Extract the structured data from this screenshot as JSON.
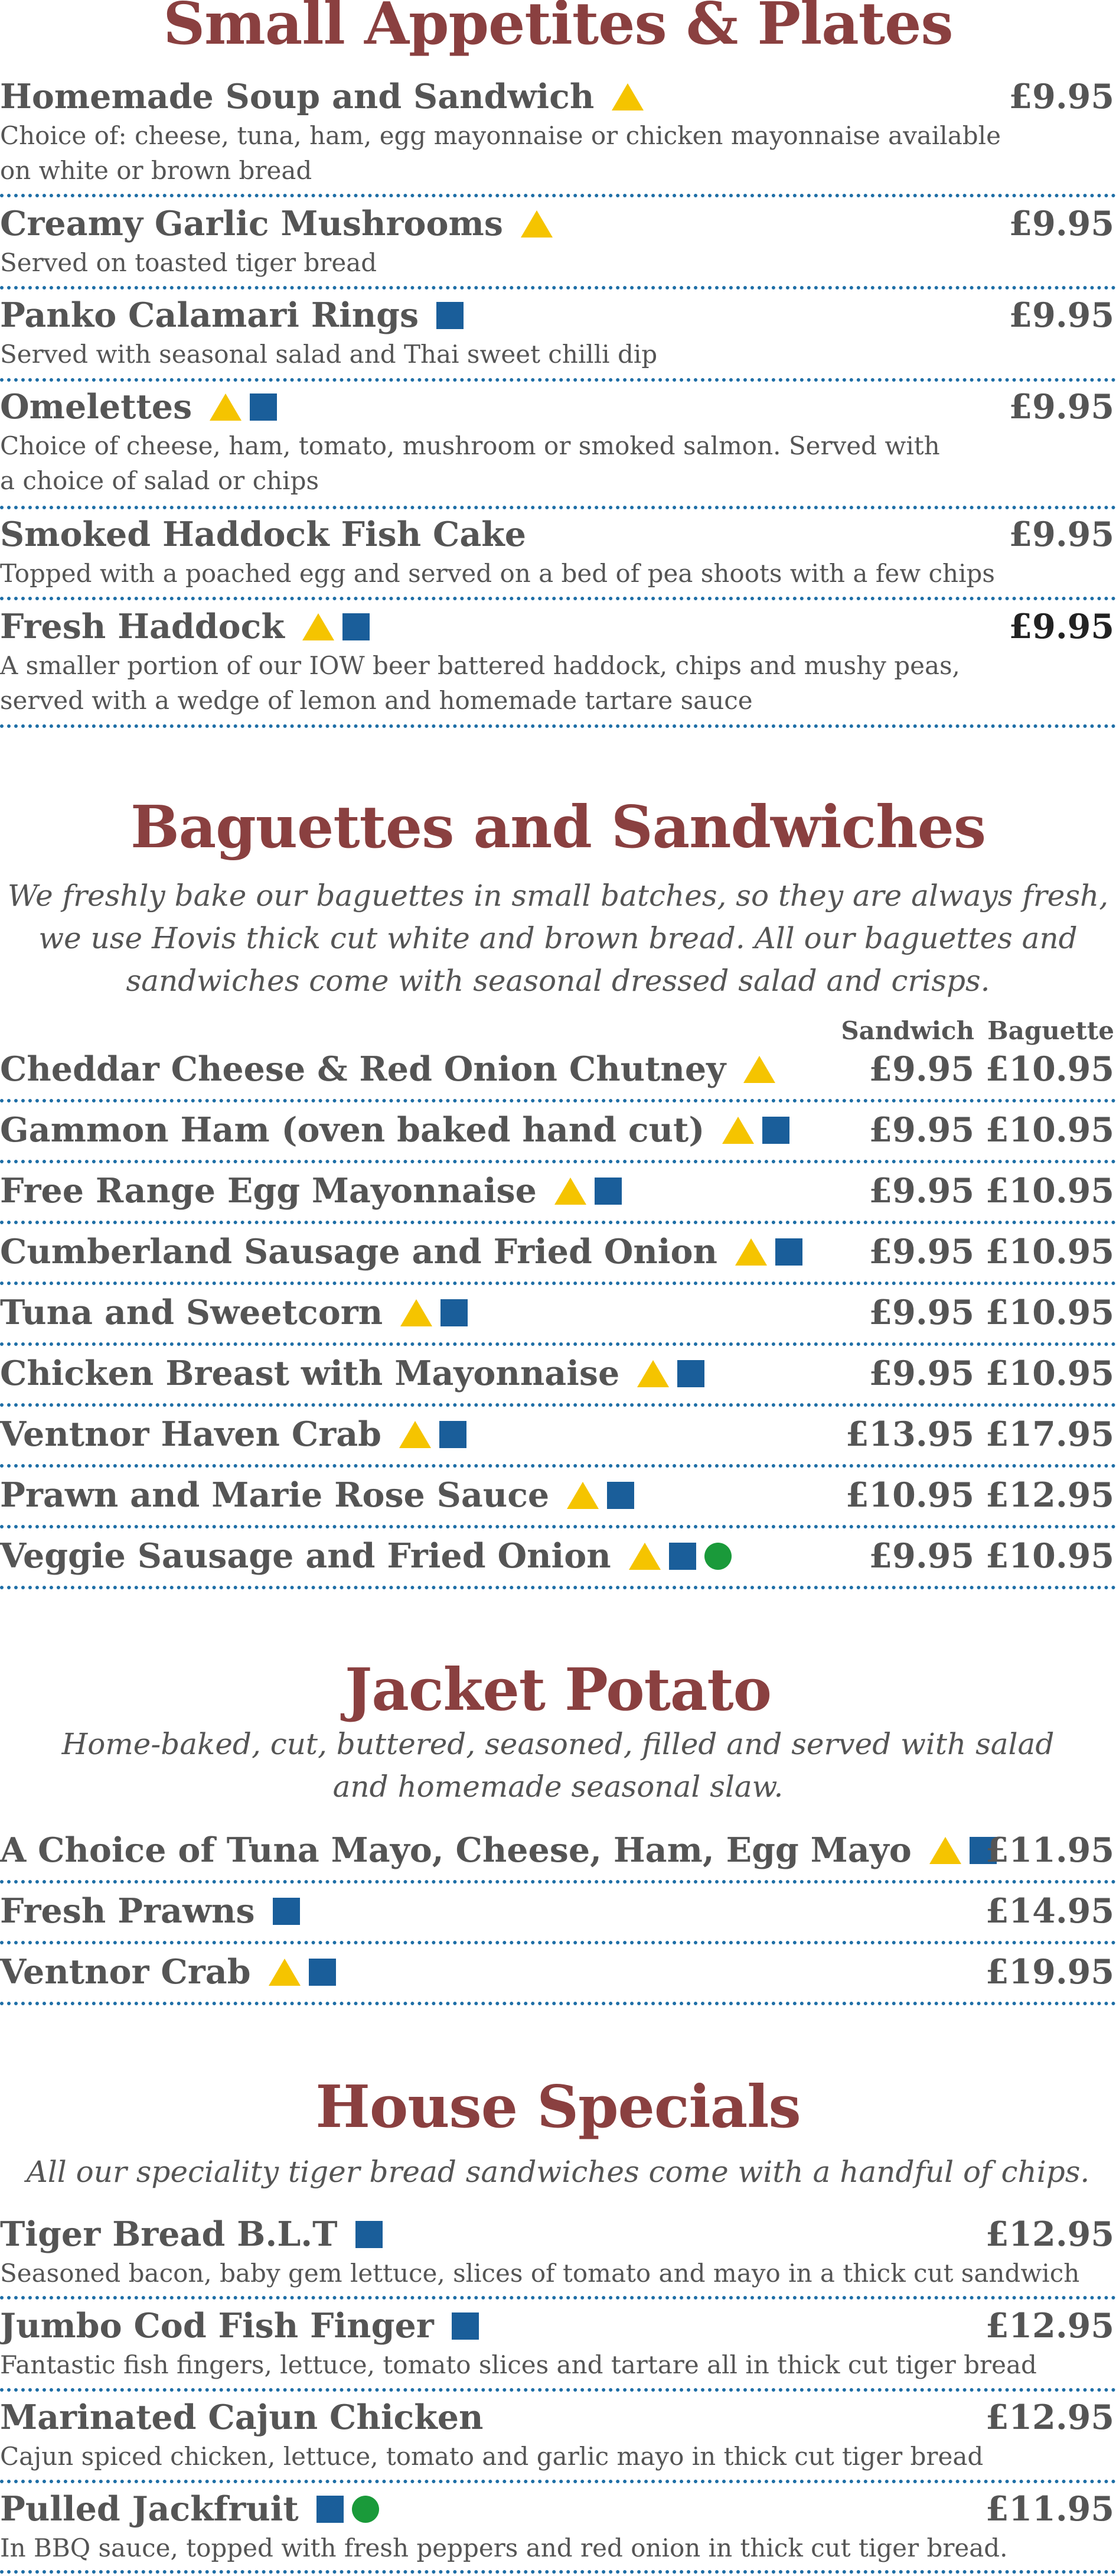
{
  "small_plates": {
    "title": "Small Appetites & Plates",
    "items": [
      {
        "name": "Homemade Soup and Sandwich",
        "price": "£9.95",
        "desc1": "Choice of: cheese, tuna, ham, egg mayonnaise or chicken mayonnaise available",
        "desc2": "on white or brown bread",
        "icons": [
          "vegetarian-triangle-icon"
        ]
      },
      {
        "name": "Creamy Garlic Mushrooms",
        "price": "£9.95",
        "desc1": "Served on toasted tiger bread",
        "icons": [
          "vegetarian-triangle-icon"
        ]
      },
      {
        "name": "Panko Calamari Rings",
        "price": "£9.95",
        "desc1": "Served with seasonal salad and Thai sweet chilli dip",
        "icons": [
          "gluten-free-square-icon"
        ]
      },
      {
        "name": "Omelettes",
        "price": "£9.95",
        "desc1": "Choice of cheese, ham, tomato, mushroom or smoked salmon. Served with",
        "desc2": "a choice of salad or chips",
        "icons": [
          "vegetarian-triangle-icon",
          "gluten-free-square-icon"
        ]
      },
      {
        "name": "Smoked Haddock Fish Cake",
        "price": "£9.95",
        "desc1": "Topped with a poached egg and served on a bed of pea shoots with a few chips",
        "icons": []
      },
      {
        "name": "Fresh Haddock",
        "price": "£9.95",
        "desc1": "A smaller portion of our IOW beer battered haddock, chips and mushy peas,",
        "desc2": "served with a wedge of lemon and homemade tartare sauce",
        "icons": [
          "vegetarian-triangle-icon",
          "gluten-free-square-icon"
        ]
      }
    ]
  },
  "baguettes": {
    "title": "Baguettes and Sandwiches",
    "intro1": "We freshly bake our baguettes in small batches, so they are always fresh,",
    "intro2": "we use Hovis thick cut white and brown bread. All our baguettes and",
    "intro3": "sandwiches come with seasonal dressed salad and crisps.",
    "col_sandwich": "Sandwich",
    "col_baguette": "Baguette",
    "items": [
      {
        "name": "Cheddar Cheese & Red Onion Chutney",
        "p1": "£9.95",
        "p2": "£10.95"
      },
      {
        "name": "Gammon Ham (oven baked hand cut)",
        "p1": "£9.95",
        "p2": "£10.95"
      },
      {
        "name": "Free Range Egg Mayonnaise",
        "p1": "£9.95",
        "p2": "£10.95"
      },
      {
        "name": "Cumberland Sausage and Fried Onion",
        "p1": "£9.95",
        "p2": "£10.95"
      },
      {
        "name": "Tuna and Sweetcorn",
        "p1": "£9.95",
        "p2": "£10.95"
      },
      {
        "name": "Chicken Breast with Mayonnaise",
        "p1": "£9.95",
        "p2": "£10.95"
      },
      {
        "name": "Ventnor Haven Crab",
        "p1": "£13.95",
        "p2": "£17.95"
      },
      {
        "name": "Prawn and Marie Rose Sauce",
        "p1": "£10.95",
        "p2": "£12.95"
      },
      {
        "name": "Veggie Sausage and Fried Onion",
        "p1": "£9.95",
        "p2": "£10.95"
      }
    ]
  },
  "jacket": {
    "title": "Jacket Potato",
    "intro1": "Home-baked, cut, buttered, seasoned, filled and served with salad",
    "intro2": "and homemade seasonal slaw.",
    "items": [
      {
        "name": "A Choice of Tuna Mayo, Cheese, Ham, Egg Mayo",
        "price": "£11.95"
      },
      {
        "name": "Fresh Prawns",
        "price": "£14.95"
      },
      {
        "name": "Ventnor Crab",
        "price": "£19.95"
      }
    ]
  },
  "specials": {
    "title": "House Specials",
    "intro1": "All our speciality tiger bread sandwiches come with a handful of chips.",
    "items": [
      {
        "name": "Tiger Bread B.L.T",
        "price": "£12.95",
        "desc1": "Seasoned bacon, baby gem lettuce, slices of tomato and mayo in a thick cut sandwich"
      },
      {
        "name": "Jumbo Cod Fish Finger",
        "price": "£12.95",
        "desc1": "Fantastic fish fingers, lettuce, tomato slices and tartare all in thick cut tiger bread"
      },
      {
        "name": "Marinated Cajun Chicken",
        "price": "£12.95",
        "desc1": "Cajun spiced chicken, lettuce, tomato and garlic mayo in thick cut tiger bread"
      },
      {
        "name": "Pulled Jackfruit",
        "price": "£11.95",
        "desc1": "In BBQ sauce, topped with fresh peppers and red onion in thick cut tiger bread."
      }
    ]
  },
  "colors": {
    "heading": "#8a4040",
    "text": "#555555",
    "rule": "#1e6ea6",
    "triangle": "#f5c400",
    "square": "#1a5e9a",
    "circle": "#1a9a3a"
  }
}
